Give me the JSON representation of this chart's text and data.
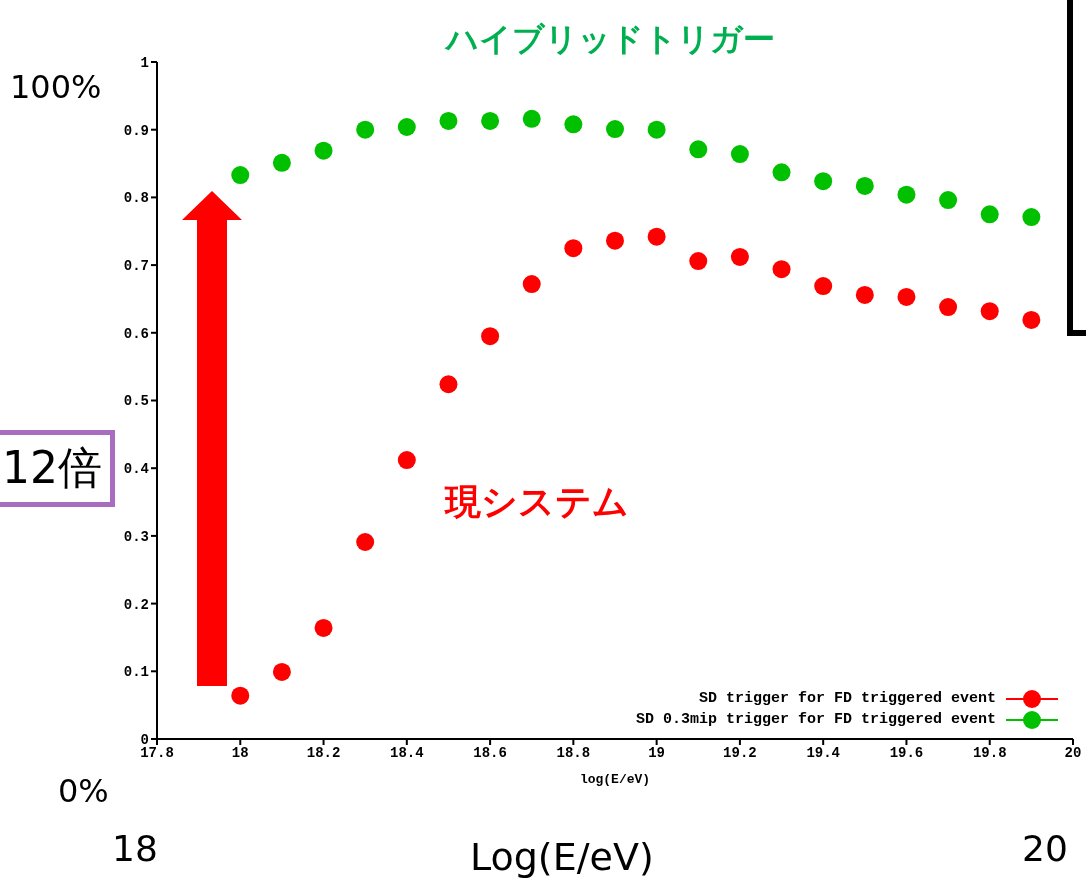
{
  "chart_data": {
    "type": "scatter",
    "title": "ハイブリッドトリガー",
    "xlabel": "log(E/eV)",
    "x": [
      18,
      18.1,
      18.2,
      18.3,
      18.4,
      18.5,
      18.6,
      18.7,
      18.8,
      18.9,
      19,
      19.1,
      19.2,
      19.3,
      19.4,
      19.5,
      19.6,
      19.7,
      19.8,
      19.9
    ],
    "series": [
      {
        "name": "SD trigger for FD triggered event",
        "color": "#ff0000",
        "values": [
          0.064,
          0.099,
          0.164,
          0.291,
          0.412,
          0.524,
          0.595,
          0.672,
          0.725,
          0.736,
          0.742,
          0.706,
          0.712,
          0.694,
          0.669,
          0.656,
          0.653,
          0.638,
          0.632,
          0.619
        ]
      },
      {
        "name": "SD 0.3mip trigger for FD triggered event",
        "color": "#00c000",
        "values": [
          0.833,
          0.851,
          0.869,
          0.9,
          0.904,
          0.913,
          0.913,
          0.916,
          0.908,
          0.901,
          0.9,
          0.871,
          0.864,
          0.837,
          0.824,
          0.817,
          0.804,
          0.796,
          0.775,
          0.771
        ]
      }
    ],
    "xlim": [
      17.8,
      20
    ],
    "xticks": [
      17.8,
      18,
      18.2,
      18.4,
      18.6,
      18.8,
      19,
      19.2,
      19.4,
      19.6,
      19.8,
      20
    ],
    "ylim": [
      0,
      1
    ],
    "yticks": [
      0,
      0.1,
      0.2,
      0.3,
      0.4,
      0.5,
      0.6,
      0.7,
      0.8,
      0.9,
      1
    ],
    "grid": false,
    "legend": "bottom right",
    "marker": "circle",
    "annotations": [
      "100%",
      "0%",
      "18",
      "20",
      "Log(E/eV)",
      "12倍",
      "現システム"
    ]
  }
}
